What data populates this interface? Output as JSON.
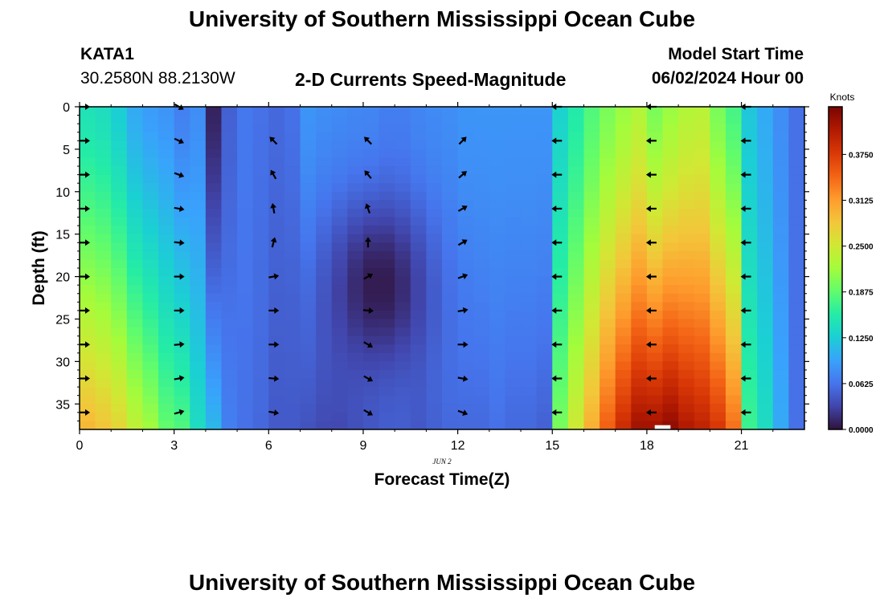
{
  "header": {
    "title": "University of Southern Mississippi Ocean Cube",
    "station_id": "KATA1",
    "station_coords": "30.2580N  88.2130W",
    "plot_subtitle": "2-D Currents Speed-Magnitude",
    "model_start_label": "Model Start Time",
    "model_start_value": "06/02/2024 Hour 00"
  },
  "footer": {
    "title": "University of Southern Mississippi Ocean Cube"
  },
  "colors": {
    "colormap": [
      "#30123b",
      "#4145ab",
      "#4675ed",
      "#39a2fc",
      "#1bcfd4",
      "#24eca6",
      "#61fc6c",
      "#a4fc3b",
      "#d1e834",
      "#f3c63a",
      "#fe9b2d",
      "#f36315",
      "#d93806",
      "#b11901",
      "#7a0403"
    ],
    "arrow": "#000000",
    "missing_cell": "#ffffff"
  },
  "chart_data": {
    "type": "heatmap",
    "title": "2-D Currents Speed-Magnitude",
    "xlabel": "Forecast Time(Z)",
    "ylabel": "Depth (ft)",
    "date_label": "JUN 2",
    "x_ticks": [
      "0",
      "3",
      "6",
      "9",
      "12",
      "15",
      "18",
      "21"
    ],
    "x_tick_values": [
      0,
      3,
      6,
      9,
      12,
      15,
      18,
      21
    ],
    "xlim": [
      0,
      23
    ],
    "y_ticks": [
      "0",
      "5",
      "10",
      "15",
      "20",
      "25",
      "30",
      "35"
    ],
    "y_tick_values": [
      0,
      5,
      10,
      15,
      20,
      25,
      30,
      35
    ],
    "ylim": [
      0,
      38
    ],
    "colorbar": {
      "unit": "Knots",
      "ticks": [
        "0.0000",
        "0.0625",
        "0.1250",
        "0.1875",
        "0.2500",
        "0.3125",
        "0.3750"
      ],
      "tick_values": [
        0,
        0.0625,
        0.125,
        0.1875,
        0.25,
        0.3125,
        0.375
      ],
      "range": [
        0,
        0.44
      ]
    },
    "time_hours": [
      0,
      0.5,
      1,
      1.5,
      2,
      2.5,
      3,
      3.5,
      4,
      4.5,
      5,
      5.5,
      6,
      6.5,
      7,
      7.5,
      8,
      8.5,
      9,
      9.5,
      10,
      10.5,
      11,
      11.5,
      12,
      12.5,
      13,
      13.5,
      14,
      14.5,
      15,
      15.5,
      16,
      16.5,
      17,
      17.5,
      18,
      18.5,
      19,
      19.5,
      20,
      20.5,
      21,
      21.5,
      22,
      22.5
    ],
    "surface_speed_knots": [
      0.145,
      0.14,
      0.125,
      0.1,
      0.09,
      0.085,
      0.07,
      0.08,
      0.01,
      0.05,
      0.065,
      0.06,
      0.055,
      0.06,
      0.085,
      0.08,
      0.078,
      0.076,
      0.075,
      0.07,
      0.07,
      0.075,
      0.078,
      0.08,
      0.085,
      0.085,
      0.085,
      0.085,
      0.085,
      0.085,
      0.13,
      0.155,
      0.18,
      0.2,
      0.215,
      0.23,
      0.2,
      0.215,
      0.23,
      0.235,
      0.2,
      0.175,
      0.12,
      0.1,
      0.08,
      0.06
    ],
    "bottom_speed_knots": [
      0.295,
      0.285,
      0.27,
      0.24,
      0.22,
      0.19,
      0.18,
      0.14,
      0.11,
      0.07,
      0.06,
      0.055,
      0.045,
      0.045,
      0.04,
      0.035,
      0.035,
      0.04,
      0.045,
      0.05,
      0.05,
      0.045,
      0.05,
      0.055,
      0.055,
      0.055,
      0.06,
      0.055,
      0.055,
      0.05,
      0.2,
      0.25,
      0.3,
      0.35,
      0.39,
      0.42,
      0.42,
      0.43,
      0.41,
      0.4,
      0.38,
      0.34,
      0.17,
      0.14,
      0.1,
      0.06
    ],
    "low_speed_feature": {
      "center_hour": 9.5,
      "center_depth_ft": 21,
      "min_speed_knots": 0.005
    },
    "missing_cell": {
      "hour_start": 18.25,
      "hour_end": 18.75,
      "depth_start_ft": 37.5,
      "depth_end_ft": 38
    },
    "vector_hours": [
      0,
      3,
      6,
      9,
      12,
      15,
      18,
      21
    ],
    "vector_depths_ft": [
      0,
      4,
      8,
      12,
      16,
      20,
      24,
      28,
      32,
      36
    ],
    "vector_directions_deg": [
      [
        90,
        90,
        90,
        90,
        90,
        90,
        90,
        90,
        90,
        90
      ],
      [
        120,
        115,
        110,
        100,
        95,
        90,
        90,
        85,
        80,
        75
      ],
      [
        null,
        -45,
        -30,
        -10,
        15,
        80,
        90,
        90,
        95,
        100
      ],
      [
        null,
        -45,
        -40,
        -20,
        0,
        60,
        95,
        120,
        120,
        120
      ],
      [
        null,
        45,
        50,
        60,
        60,
        70,
        80,
        90,
        100,
        110
      ],
      [
        -90,
        -90,
        -90,
        -90,
        -90,
        -90,
        -90,
        -90,
        -90,
        -90
      ],
      [
        -90,
        -90,
        -90,
        -90,
        -90,
        -90,
        -90,
        -90,
        -90,
        -90
      ],
      [
        -90,
        -90,
        -90,
        -90,
        -90,
        -90,
        -90,
        -90,
        -90,
        -90
      ]
    ]
  }
}
